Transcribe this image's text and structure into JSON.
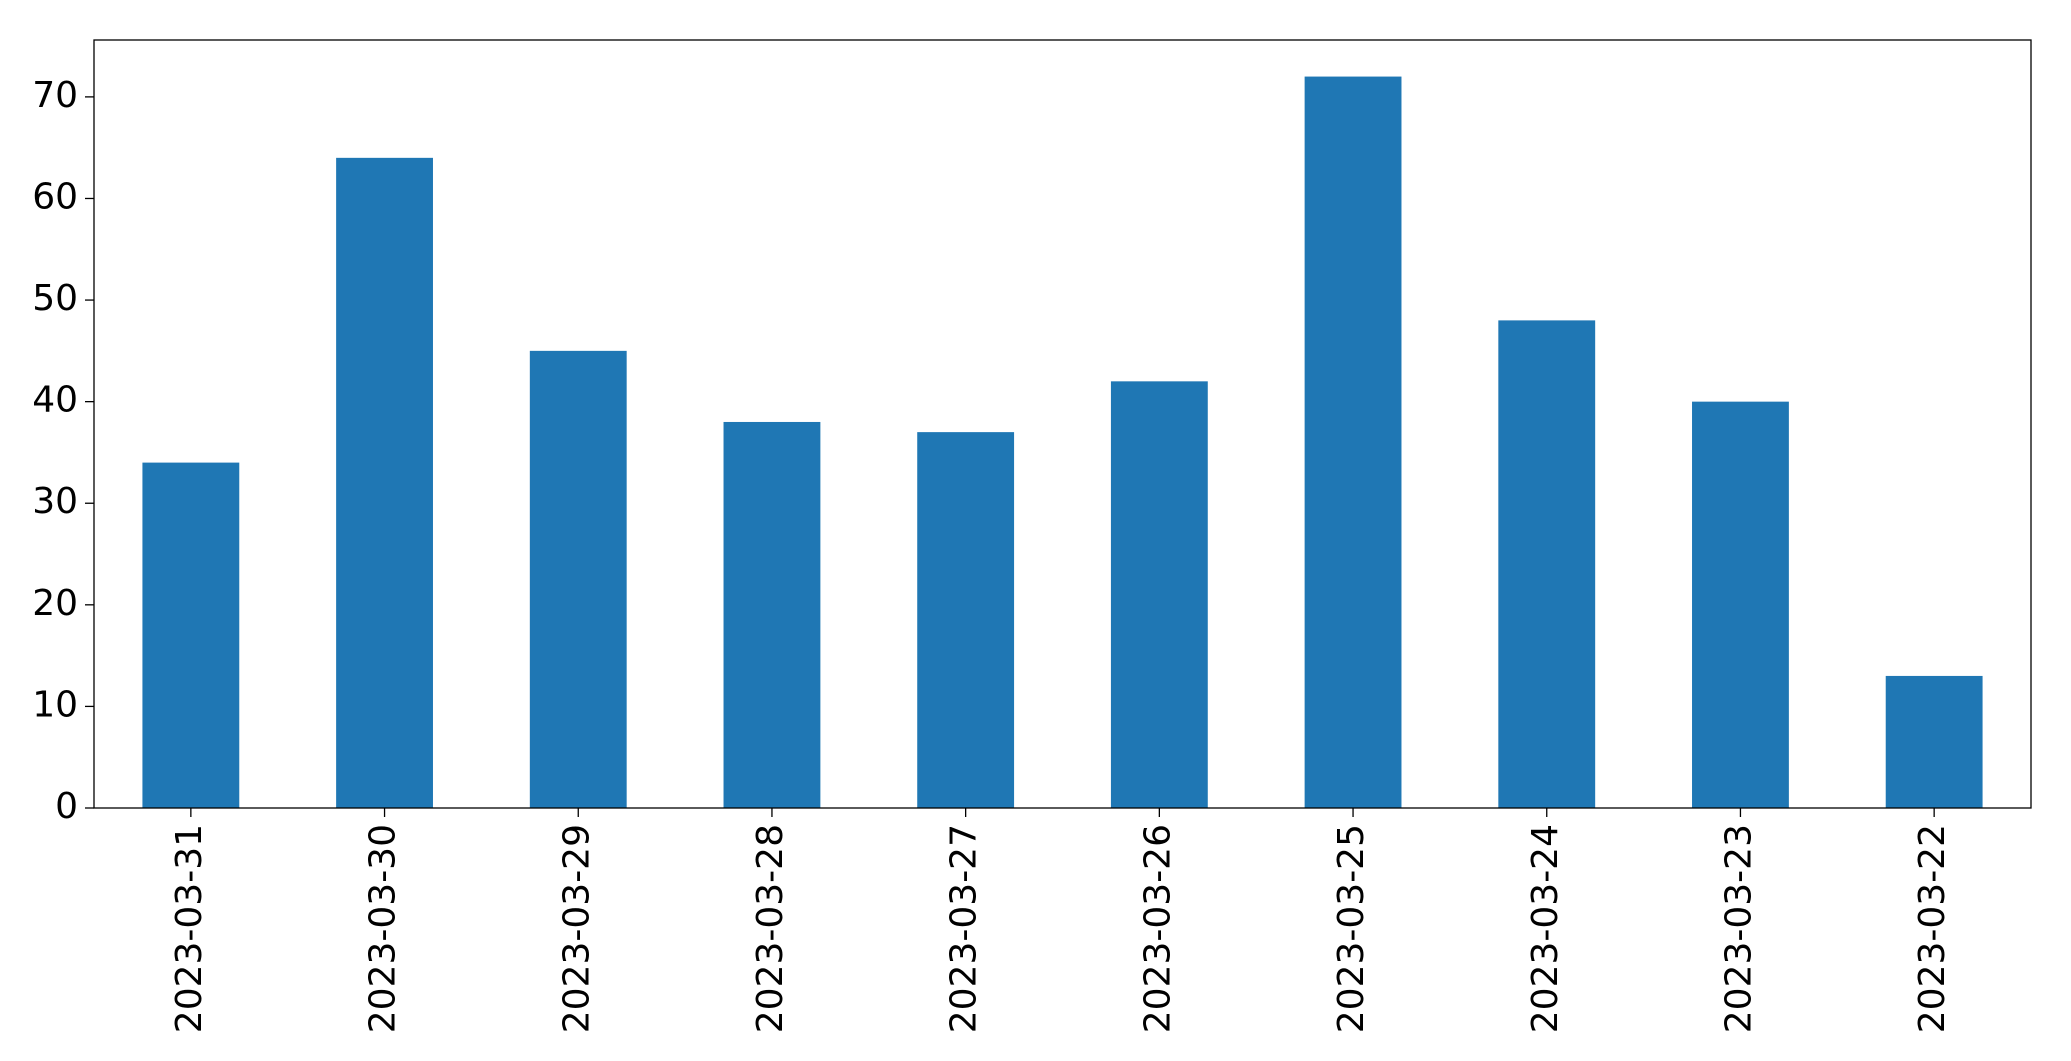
{
  "chart_data": {
    "type": "bar",
    "categories": [
      "2023-03-31",
      "2023-03-30",
      "2023-03-29",
      "2023-03-28",
      "2023-03-27",
      "2023-03-26",
      "2023-03-25",
      "2023-03-24",
      "2023-03-23",
      "2023-03-22"
    ],
    "values": [
      34,
      64,
      45,
      38,
      37,
      42,
      72,
      48,
      40,
      13
    ],
    "color": "#1f77b4",
    "ylim": [
      0,
      75.6
    ],
    "yticks": [
      0,
      10,
      20,
      30,
      40,
      50,
      60,
      70
    ],
    "grid": false
  }
}
